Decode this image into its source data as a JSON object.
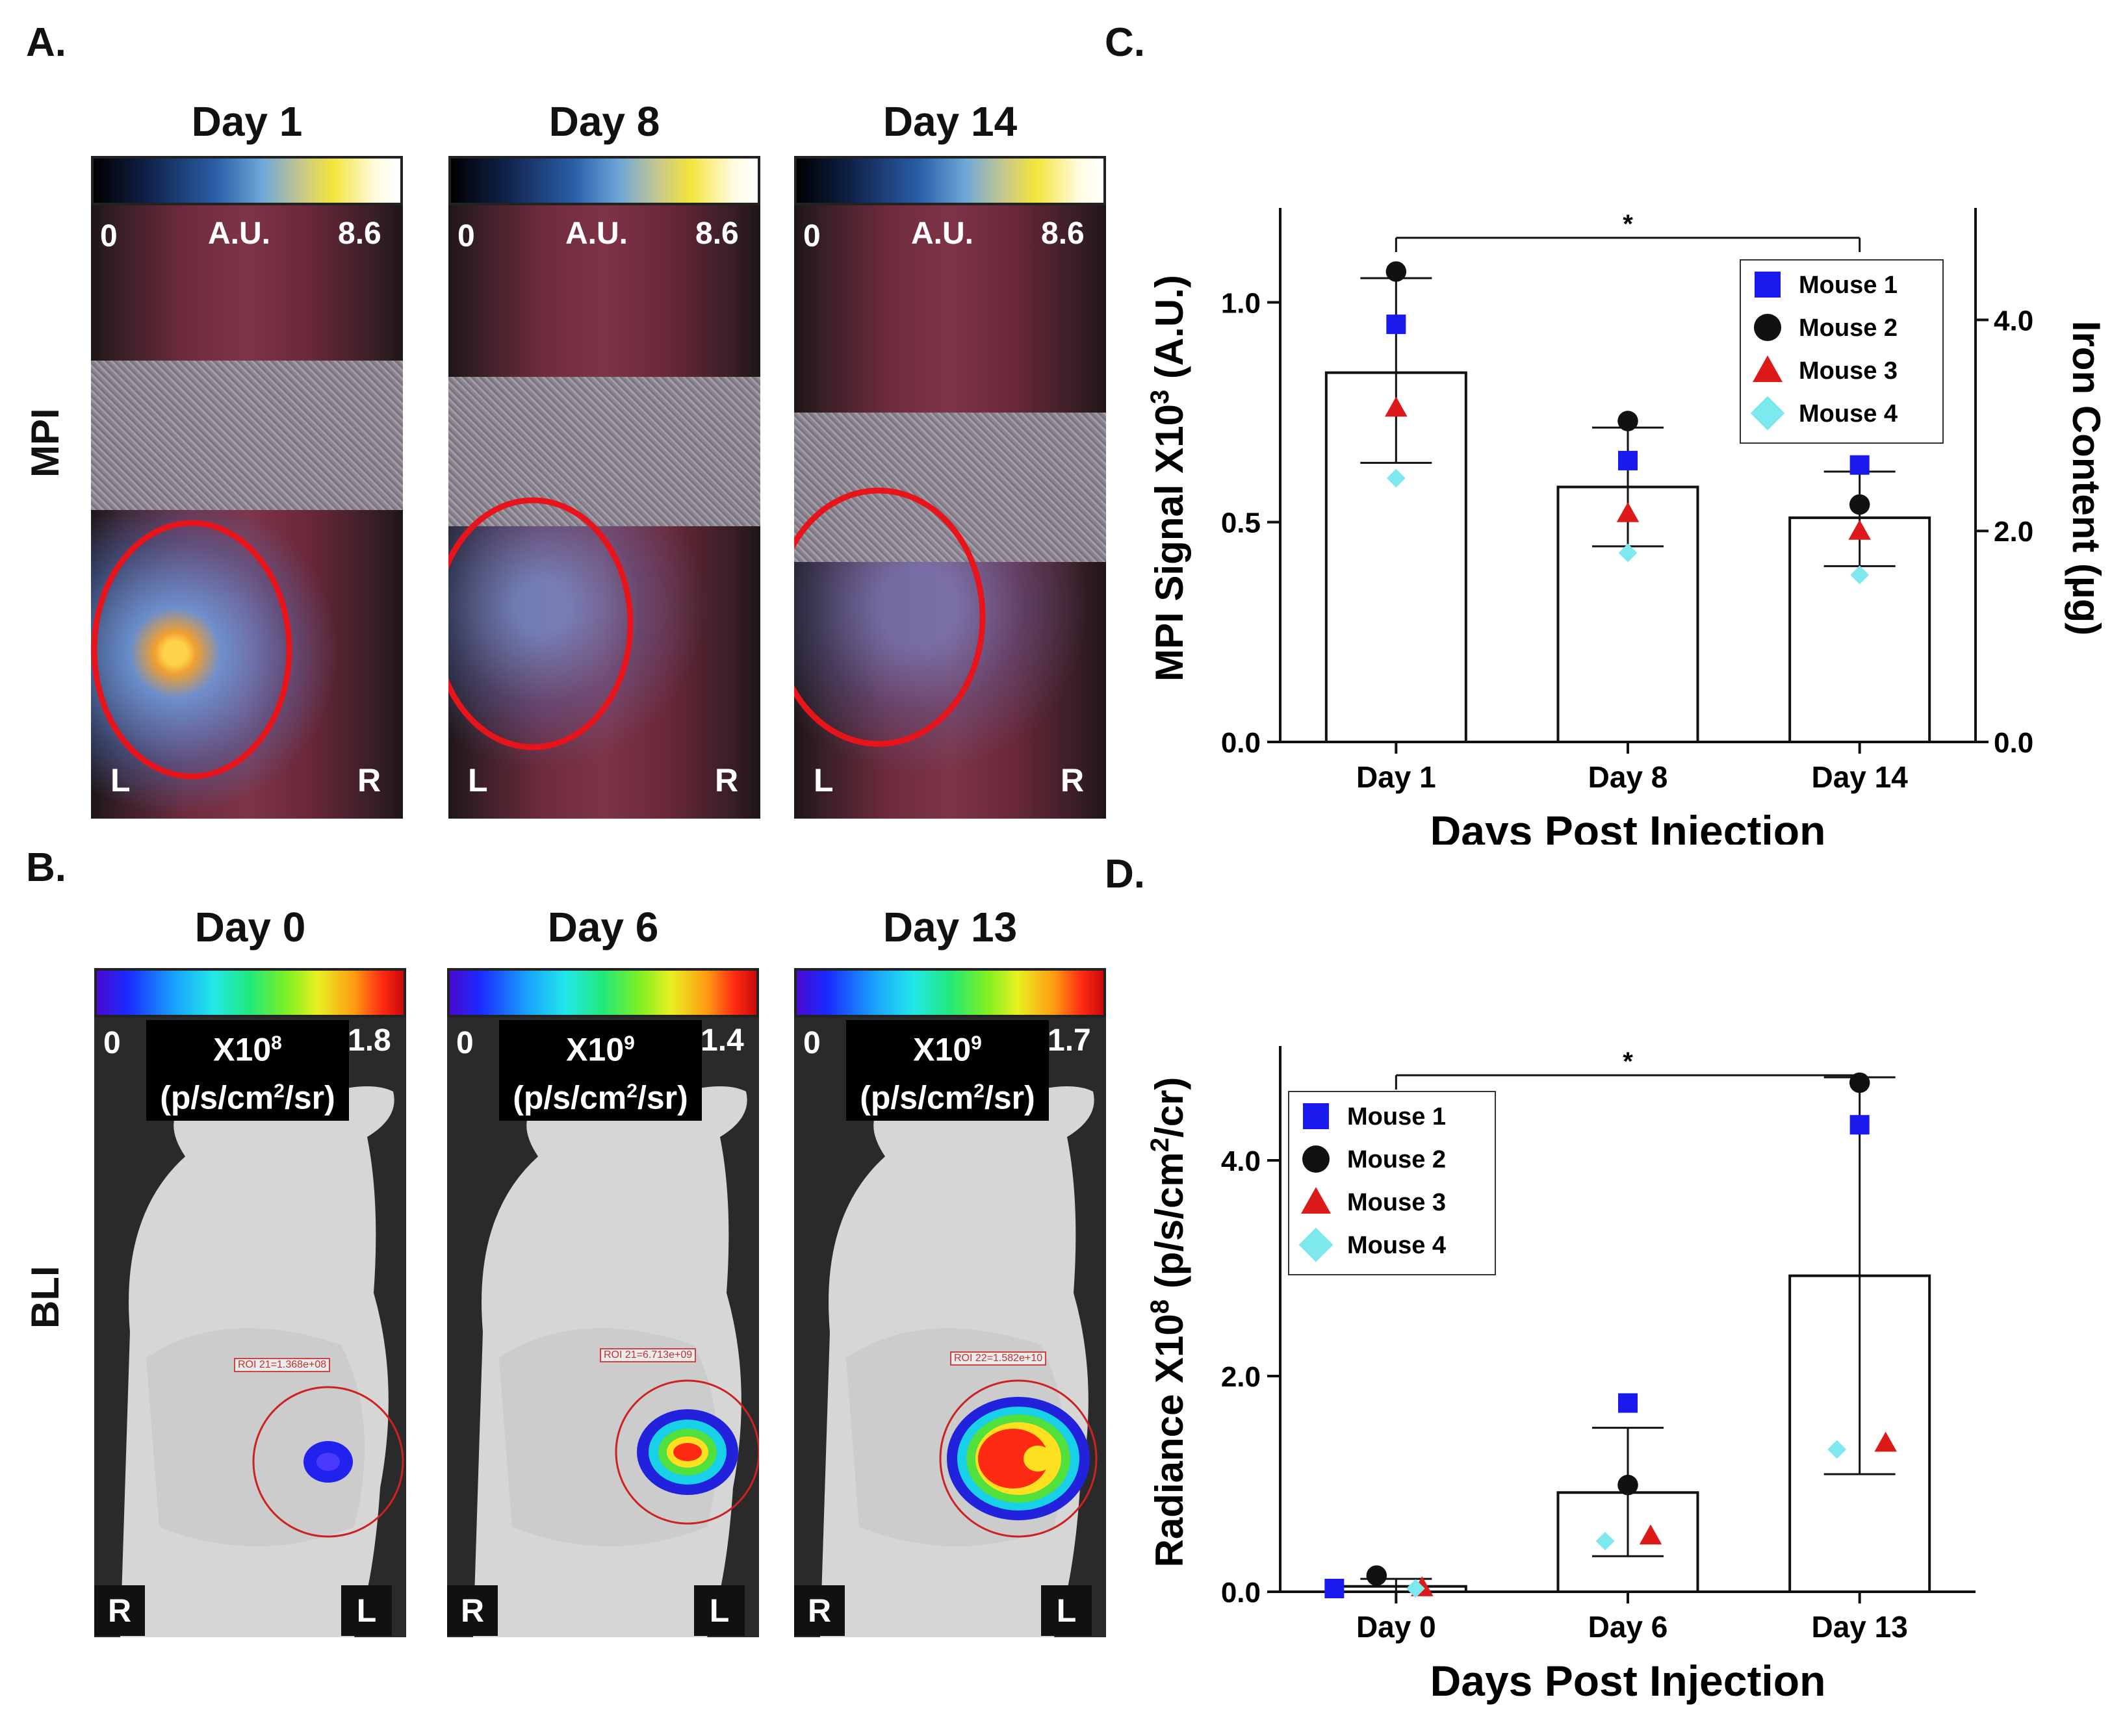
{
  "panels": {
    "a": "A.",
    "b": "B.",
    "c": "C.",
    "d": "D."
  },
  "row_labels": {
    "mpi": "MPI",
    "bli": "BLI"
  },
  "mpi_images": [
    {
      "title": "Day 1",
      "cb_min": "0",
      "cb_unit": "A.U.",
      "cb_max": "8.6",
      "left": "L",
      "right": "R"
    },
    {
      "title": "Day 8",
      "cb_min": "0",
      "cb_unit": "A.U.",
      "cb_max": "8.6",
      "left": "L",
      "right": "R"
    },
    {
      "title": "Day 14",
      "cb_min": "0",
      "cb_unit": "A.U.",
      "cb_max": "8.6",
      "left": "L",
      "right": "R"
    }
  ],
  "bli_images": [
    {
      "title": "Day 0",
      "cb_min": "0",
      "cb_scale": "X10",
      "cb_exp": "8",
      "cb_unit_a": "(p/s/cm",
      "cb_unit_sup": "2",
      "cb_unit_b": "/sr)",
      "cb_max": "1.8",
      "left": "R",
      "right": "L",
      "roi": "ROI 21=1.368e+08"
    },
    {
      "title": "Day 6",
      "cb_min": "0",
      "cb_scale": "X10",
      "cb_exp": "9",
      "cb_unit_a": "(p/s/cm",
      "cb_unit_sup": "2",
      "cb_unit_b": "/sr)",
      "cb_max": "1.4",
      "left": "R",
      "right": "L",
      "roi": "ROI 21=6.713e+09"
    },
    {
      "title": "Day 13",
      "cb_min": "0",
      "cb_scale": "X10",
      "cb_exp": "9",
      "cb_unit_a": "(p/s/cm",
      "cb_unit_sup": "2",
      "cb_unit_b": "/sr)",
      "cb_max": "1.7",
      "left": "R",
      "right": "L",
      "roi": "ROI 22=1.582e+10"
    }
  ],
  "colors": {
    "mouse1": "#1a1aee",
    "mouse2": "#111111",
    "mouse3": "#dd1a1a",
    "mouse4": "#7de9ef",
    "roi_red": "#e8141b"
  },
  "chart_data": [
    {
      "id": "C",
      "type": "bar",
      "categories": [
        "Day 1",
        "Day 8",
        "Day 14"
      ],
      "mean": [
        0.84,
        0.58,
        0.51
      ],
      "err_low": [
        0.635,
        0.445,
        0.4
      ],
      "err_high": [
        1.055,
        0.715,
        0.615
      ],
      "series": [
        {
          "name": "Mouse 1",
          "marker": "square",
          "values": [
            0.95,
            0.64,
            0.63
          ]
        },
        {
          "name": "Mouse 2",
          "marker": "circle",
          "values": [
            1.07,
            0.73,
            0.54
          ]
        },
        {
          "name": "Mouse 3",
          "marker": "triangle",
          "values": [
            0.76,
            0.52,
            0.48
          ]
        },
        {
          "name": "Mouse 4",
          "marker": "diamond",
          "values": [
            0.6,
            0.43,
            0.38
          ]
        }
      ],
      "ylim": [
        0,
        1.2
      ],
      "yticks": [
        0.0,
        0.5,
        1.0
      ],
      "ytick_labels": [
        "0.0",
        "0.5",
        "1.0"
      ],
      "ylabel": "MPI Signal X10",
      "ylabel_sup": "3",
      "ylabel_tail": " (A.U.)",
      "y2ticks": [
        0.0,
        2.0,
        4.0
      ],
      "y2tick_labels": [
        "0.0",
        "2.0",
        "4.0"
      ],
      "y2lim": [
        0,
        5.0
      ],
      "y2label": "Iron Content (µg)",
      "xlabel": "Days Post Injection",
      "significance": {
        "from": 0,
        "to": 2,
        "label": "*"
      },
      "legend": "top-right"
    },
    {
      "id": "D",
      "type": "bar",
      "categories": [
        "Day 0",
        "Day 6",
        "Day 13"
      ],
      "mean": [
        0.05,
        0.92,
        2.93
      ],
      "err_low": [
        0.0,
        0.33,
        1.09
      ],
      "err_high": [
        0.12,
        1.52,
        4.77
      ],
      "series": [
        {
          "name": "Mouse 1",
          "marker": "square",
          "values": [
            0.03,
            1.75,
            4.33
          ]
        },
        {
          "name": "Mouse 2",
          "marker": "circle",
          "values": [
            0.15,
            0.99,
            4.72
          ]
        },
        {
          "name": "Mouse 3",
          "marker": "triangle",
          "values": [
            0.04,
            0.52,
            1.38
          ]
        },
        {
          "name": "Mouse 4",
          "marker": "diamond",
          "values": [
            0.03,
            0.47,
            1.32
          ]
        }
      ],
      "ylim": [
        0,
        5.0
      ],
      "yticks": [
        0.0,
        2.0,
        4.0
      ],
      "ytick_labels": [
        "0.0",
        "2.0",
        "4.0"
      ],
      "ylabel": "Radiance X10",
      "ylabel_sup": "8",
      "ylabel_tail": " (p/s/cm",
      "ylabel_sup2": "2",
      "ylabel_tail2": "/cr)",
      "xlabel": "Days Post Injection",
      "significance": {
        "from": 0,
        "to": 2,
        "label": "*"
      },
      "legend": "top-left"
    }
  ]
}
